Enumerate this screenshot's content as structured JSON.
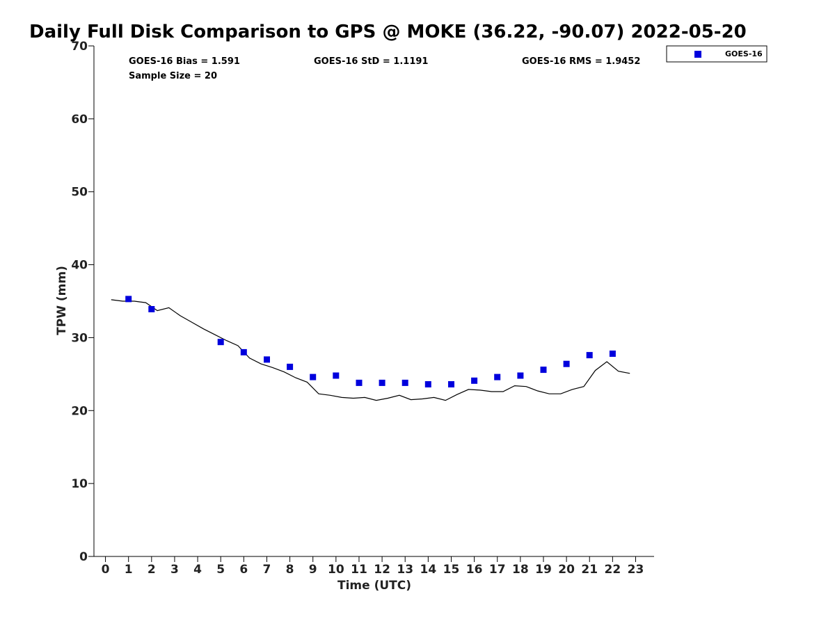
{
  "chart_data": {
    "type": "scatter",
    "title": "Daily Full Disk Comparison to GPS @ MOKE (36.22, -90.07) 2022-05-20",
    "xlabel": "Time (UTC)",
    "ylabel": "TPW (mm)",
    "xlim": [
      -0.5,
      23.8
    ],
    "ylim": [
      0,
      70
    ],
    "x_ticks": [
      0,
      1,
      2,
      3,
      4,
      5,
      6,
      7,
      8,
      9,
      10,
      11,
      12,
      13,
      14,
      15,
      16,
      17,
      18,
      19,
      20,
      21,
      22,
      23
    ],
    "y_ticks": [
      0,
      10,
      20,
      30,
      40,
      50,
      60,
      70
    ],
    "grid": false,
    "legend_position": "top-right",
    "stats": {
      "bias": "GOES-16 Bias = 1.591",
      "std": "GOES-16 StD = 1.1191",
      "rms": "GOES-16 RMS = 1.9452",
      "sample": "Sample Size = 20"
    },
    "series": [
      {
        "name": "GOES-16",
        "kind": "scatter",
        "color": "#0000dd",
        "marker": "square",
        "x": [
          1,
          2,
          5,
          6,
          7,
          8,
          9,
          10,
          11,
          12,
          13,
          14,
          15,
          16,
          17,
          18,
          19,
          20,
          21,
          22
        ],
        "y": [
          35.3,
          33.9,
          29.4,
          28.0,
          27.0,
          26.0,
          24.6,
          24.8,
          23.8,
          23.8,
          23.8,
          23.6,
          23.6,
          24.1,
          24.6,
          24.8,
          25.6,
          26.4,
          27.6,
          27.8
        ]
      },
      {
        "kind": "line",
        "color": "#000000",
        "x": [
          0.25,
          0.75,
          1.25,
          1.75,
          2.25,
          2.75,
          3.25,
          3.75,
          4.25,
          4.75,
          5.25,
          5.75,
          6.25,
          6.75,
          7.25,
          7.75,
          8.25,
          8.75,
          9.25,
          9.75,
          10.25,
          10.75,
          11.25,
          11.75,
          12.25,
          12.75,
          13.25,
          13.75,
          14.25,
          14.75,
          15.25,
          15.75,
          16.25,
          16.75,
          17.25,
          17.75,
          18.25,
          18.75,
          19.25,
          19.75,
          20.25,
          20.75,
          21.25,
          21.75,
          22.25,
          22.75
        ],
        "y": [
          35.2,
          35.0,
          35.0,
          34.8,
          33.7,
          34.1,
          33.0,
          32.1,
          31.2,
          30.4,
          29.6,
          28.9,
          27.2,
          26.4,
          25.9,
          25.3,
          24.5,
          23.9,
          22.3,
          22.1,
          21.8,
          21.7,
          21.8,
          21.4,
          21.7,
          22.1,
          21.5,
          21.6,
          21.8,
          21.4,
          22.2,
          22.9,
          22.8,
          22.6,
          22.6,
          23.4,
          23.3,
          22.7,
          22.3,
          22.3,
          22.9,
          23.3,
          25.5,
          26.7,
          25.4,
          25.1
        ]
      }
    ]
  }
}
